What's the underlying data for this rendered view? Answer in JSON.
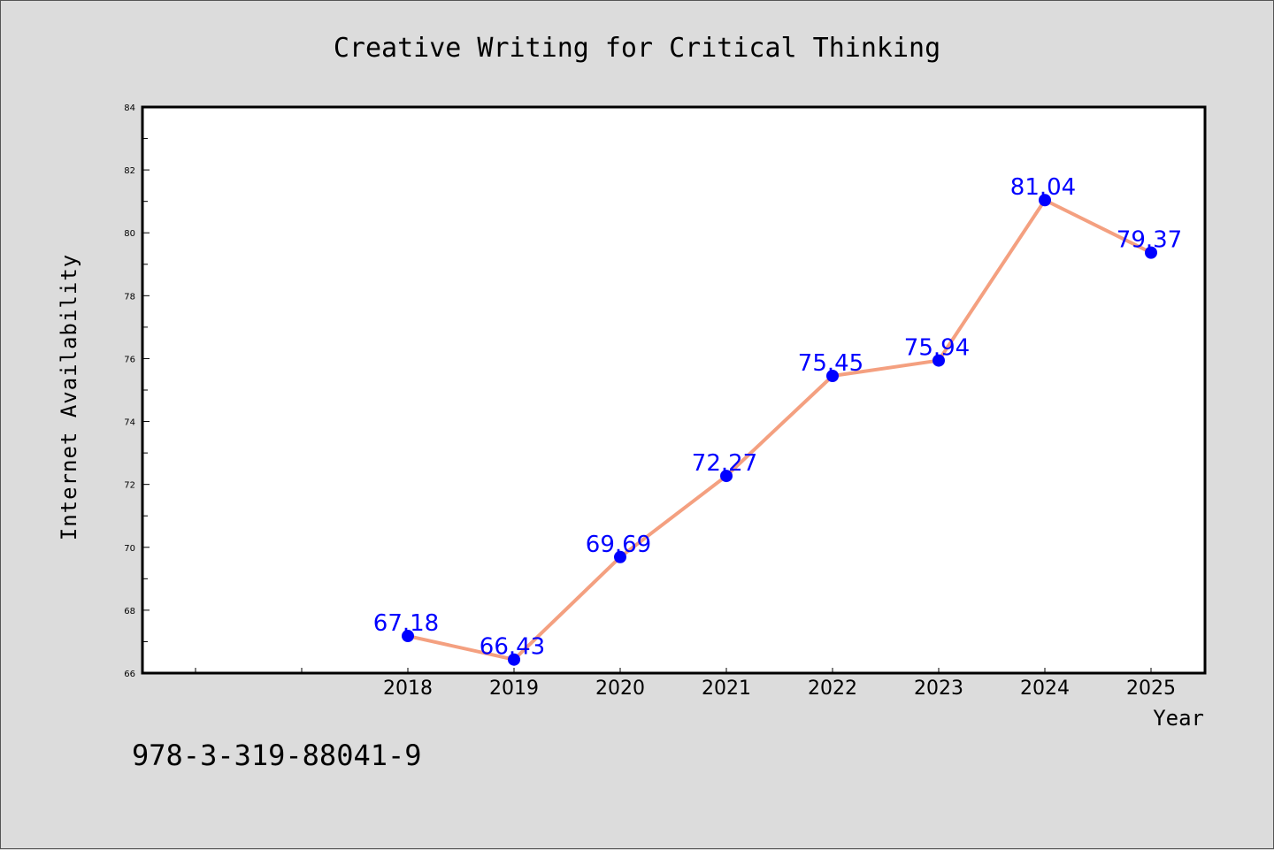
{
  "chart_data": {
    "type": "line",
    "title": "Creative Writing for Critical Thinking",
    "xlabel": "Year",
    "ylabel": "Internet Availability",
    "categories": [
      "2018",
      "2019",
      "2020",
      "2021",
      "2022",
      "2023",
      "2024",
      "2025"
    ],
    "series": [
      {
        "values": [
          67.18,
          66.43,
          69.69,
          72.27,
          75.45,
          75.94,
          81.04,
          79.37
        ],
        "line_color": "#f4a080",
        "marker_color": "#0000ff"
      }
    ],
    "data_labels": [
      "67.18",
      "66.43",
      "69.69",
      "72.27",
      "75.45",
      "75.94",
      "81.04",
      "79.37"
    ],
    "ylim": [
      66,
      84
    ],
    "yticks": [
      66,
      68,
      70,
      72,
      74,
      76,
      78,
      80,
      82,
      84
    ],
    "label_color": "#0000ff",
    "grid": false
  },
  "footer": {
    "isbn": "978-3-319-88041-9"
  }
}
